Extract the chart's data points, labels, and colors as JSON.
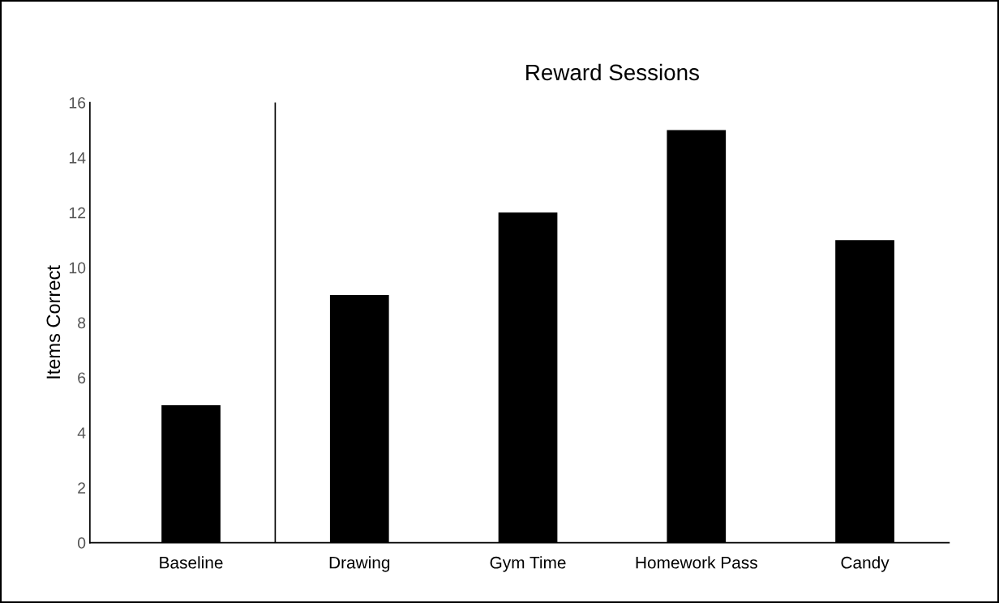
{
  "chart_data": {
    "type": "bar",
    "title": "Reward Sessions",
    "ylabel": "Items Correct",
    "categories": [
      "Baseline",
      "Drawing",
      "Gym Time",
      "Homework Pass",
      "Candy"
    ],
    "values": [
      5,
      9,
      12,
      15,
      11
    ],
    "color": "#000000",
    "ylim": [
      0,
      16
    ],
    "yticks": [
      0,
      2,
      4,
      6,
      8,
      10,
      12,
      14,
      16
    ],
    "grid": false,
    "legend": false
  }
}
